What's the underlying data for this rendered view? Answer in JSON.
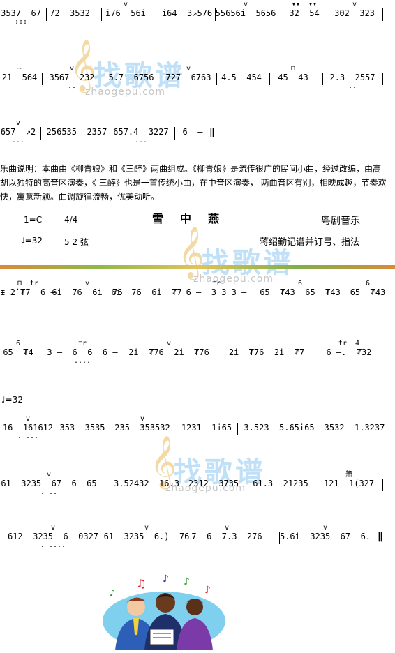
{
  "watermark": {
    "cn": "找歌谱",
    "en": "zhaogepu.com"
  },
  "score_part1": [
    {
      "bars": [
        {
          "ornament": "",
          "text": "3537  67",
          "dots": ":::"
        },
        {
          "ornament": "",
          "text": "72  3532",
          "dots": ""
        },
        {
          "ornament": "v",
          "text": "i76  56i",
          "dots": ""
        },
        {
          "ornament": "",
          "text": "i64  3↗576",
          "dots": ""
        },
        {
          "ornament": "v",
          "text": "55656i  5656",
          "dots": ""
        },
        {
          "ornament": "▾▾  ▾▾",
          "text": "32  54",
          "dots": ""
        },
        {
          "ornament": "v",
          "text": "302  323",
          "dots": ""
        }
      ]
    },
    {
      "bars": [
        {
          "ornament": "~",
          "text": "21  564",
          "dots": ""
        },
        {
          "ornament": "v",
          "text": "3567  232",
          "dots": ".."
        },
        {
          "ornament": "",
          "text": "5.7  6756",
          "dots": ""
        },
        {
          "ornament": "v",
          "text": "727  6763",
          "dots": ""
        },
        {
          "ornament": "",
          "text": "4.5  454",
          "dots": ""
        },
        {
          "ornament": "⊓",
          "text": "45  43",
          "dots": ""
        },
        {
          "ornament": "",
          "text": "2.3  2557",
          "dots": ".."
        }
      ]
    },
    {
      "bars": [
        {
          "ornament": "v",
          "text": "657  ↗2",
          "dots": "..."
        },
        {
          "ornament": "",
          "text": "256535  2357",
          "dots": ""
        },
        {
          "ornament": "",
          "text": "657.4  3227",
          "dots": "..."
        },
        {
          "ornament": "",
          "text": "6  –",
          "dots": ""
        }
      ]
    }
  ],
  "description": "乐曲说明：本曲由《柳青娘》和《三醉》两曲组成。《柳青娘》是流传很广的民间小曲，经过改编，由高胡以独特的高音区演奏，《 三醉》也是一首传统小曲，在中音区演奏， 两曲音区有别，相映成趣，节奏欢快，寓意新颖。曲调旋律流畅，优美动听。",
  "header": {
    "key": "1=C",
    "meter": "4/4",
    "title": "雪中燕",
    "genre": "粤剧音乐",
    "tempo1": "♩=32",
    "tuning": "5 2  弦",
    "credit": "蒋绍勤记谱并订弓、指法"
  },
  "score_part2": [
    {
      "bars": [
        {
          "ornament": "⊓  tr",
          "text": "ᵻ 2̇ ₮7  6 –",
          "dots": ""
        },
        {
          "ornament": "v",
          "text": "6i  76  6i  76",
          "dots": ""
        },
        {
          "ornament": "",
          "text": "6i  76  6i  ₮7",
          "dots": ""
        },
        {
          "ornament": "tr",
          "text": "6 –  3 3 3 –",
          "dots": ""
        },
        {
          "ornament": "6",
          "text": "65  ₮43  65  ₮43",
          "dots": ""
        },
        {
          "ornament": "6",
          "text": "65  ₮43",
          "dots": ""
        }
      ]
    },
    {
      "bars": [
        {
          "ornament": "6",
          "text": "65  ₮4",
          "dots": ""
        },
        {
          "ornament": "tr",
          "text": "3 –  6  6  6 –",
          "dots": "...."
        },
        {
          "ornament": "v",
          "text": "2i  ₮76  2i  ₮76",
          "dots": ""
        },
        {
          "ornament": "",
          "text": "2i  ₮76  2i  ₮7",
          "dots": ""
        },
        {
          "ornament": "tr  4",
          "text": "6 –.  ₮32",
          "dots": ""
        }
      ]
    }
  ],
  "tempo2": "♩=32",
  "score_part3": [
    {
      "bars": [
        {
          "ornament": "v",
          "text": "16  161612",
          "dots": ". ..."
        },
        {
          "ornament": "",
          "text": "353  3535",
          "dots": ""
        },
        {
          "ornament": "v",
          "text": "235  353532",
          "dots": ""
        },
        {
          "ornament": "",
          "text": "1231  1i65",
          "dots": ""
        },
        {
          "ornament": "",
          "text": "3.523  5.65i65",
          "dots": ""
        },
        {
          "ornament": "",
          "text": "3532  1.3237",
          "dots": ""
        }
      ]
    },
    {
      "bars": [
        {
          "ornament": "v",
          "text": "61  3235  67  6  65",
          "dots": ". .."
        },
        {
          "ornament": "",
          "text": "3.52432  16.3",
          "dots": ""
        },
        {
          "ornament": "",
          "text": "2312  3735",
          "dots": ""
        },
        {
          "ornament": "",
          "text": "61.3  21235",
          "dots": ""
        },
        {
          "ornament": "箫",
          "text": "121  1(327",
          "dots": ""
        }
      ]
    },
    {
      "bars": [
        {
          "ornament": "v",
          "text": "612  3235  6  0327",
          "dots": ". ...."
        },
        {
          "ornament": "v",
          "text": "61  3235  6.)  76",
          "dots": ""
        },
        {
          "ornament": "v",
          "text": "7  6  7.3  276",
          "dots": ""
        },
        {
          "ornament": "v",
          "text": "5.6i  3235  67  6.",
          "dots": ""
        }
      ]
    }
  ],
  "colors": {
    "band": "#8fb84a",
    "watermark_cn": "#bfe0f7",
    "watermark_clef": "#f3d9a6"
  },
  "clipart": "singers-with-music-notes"
}
